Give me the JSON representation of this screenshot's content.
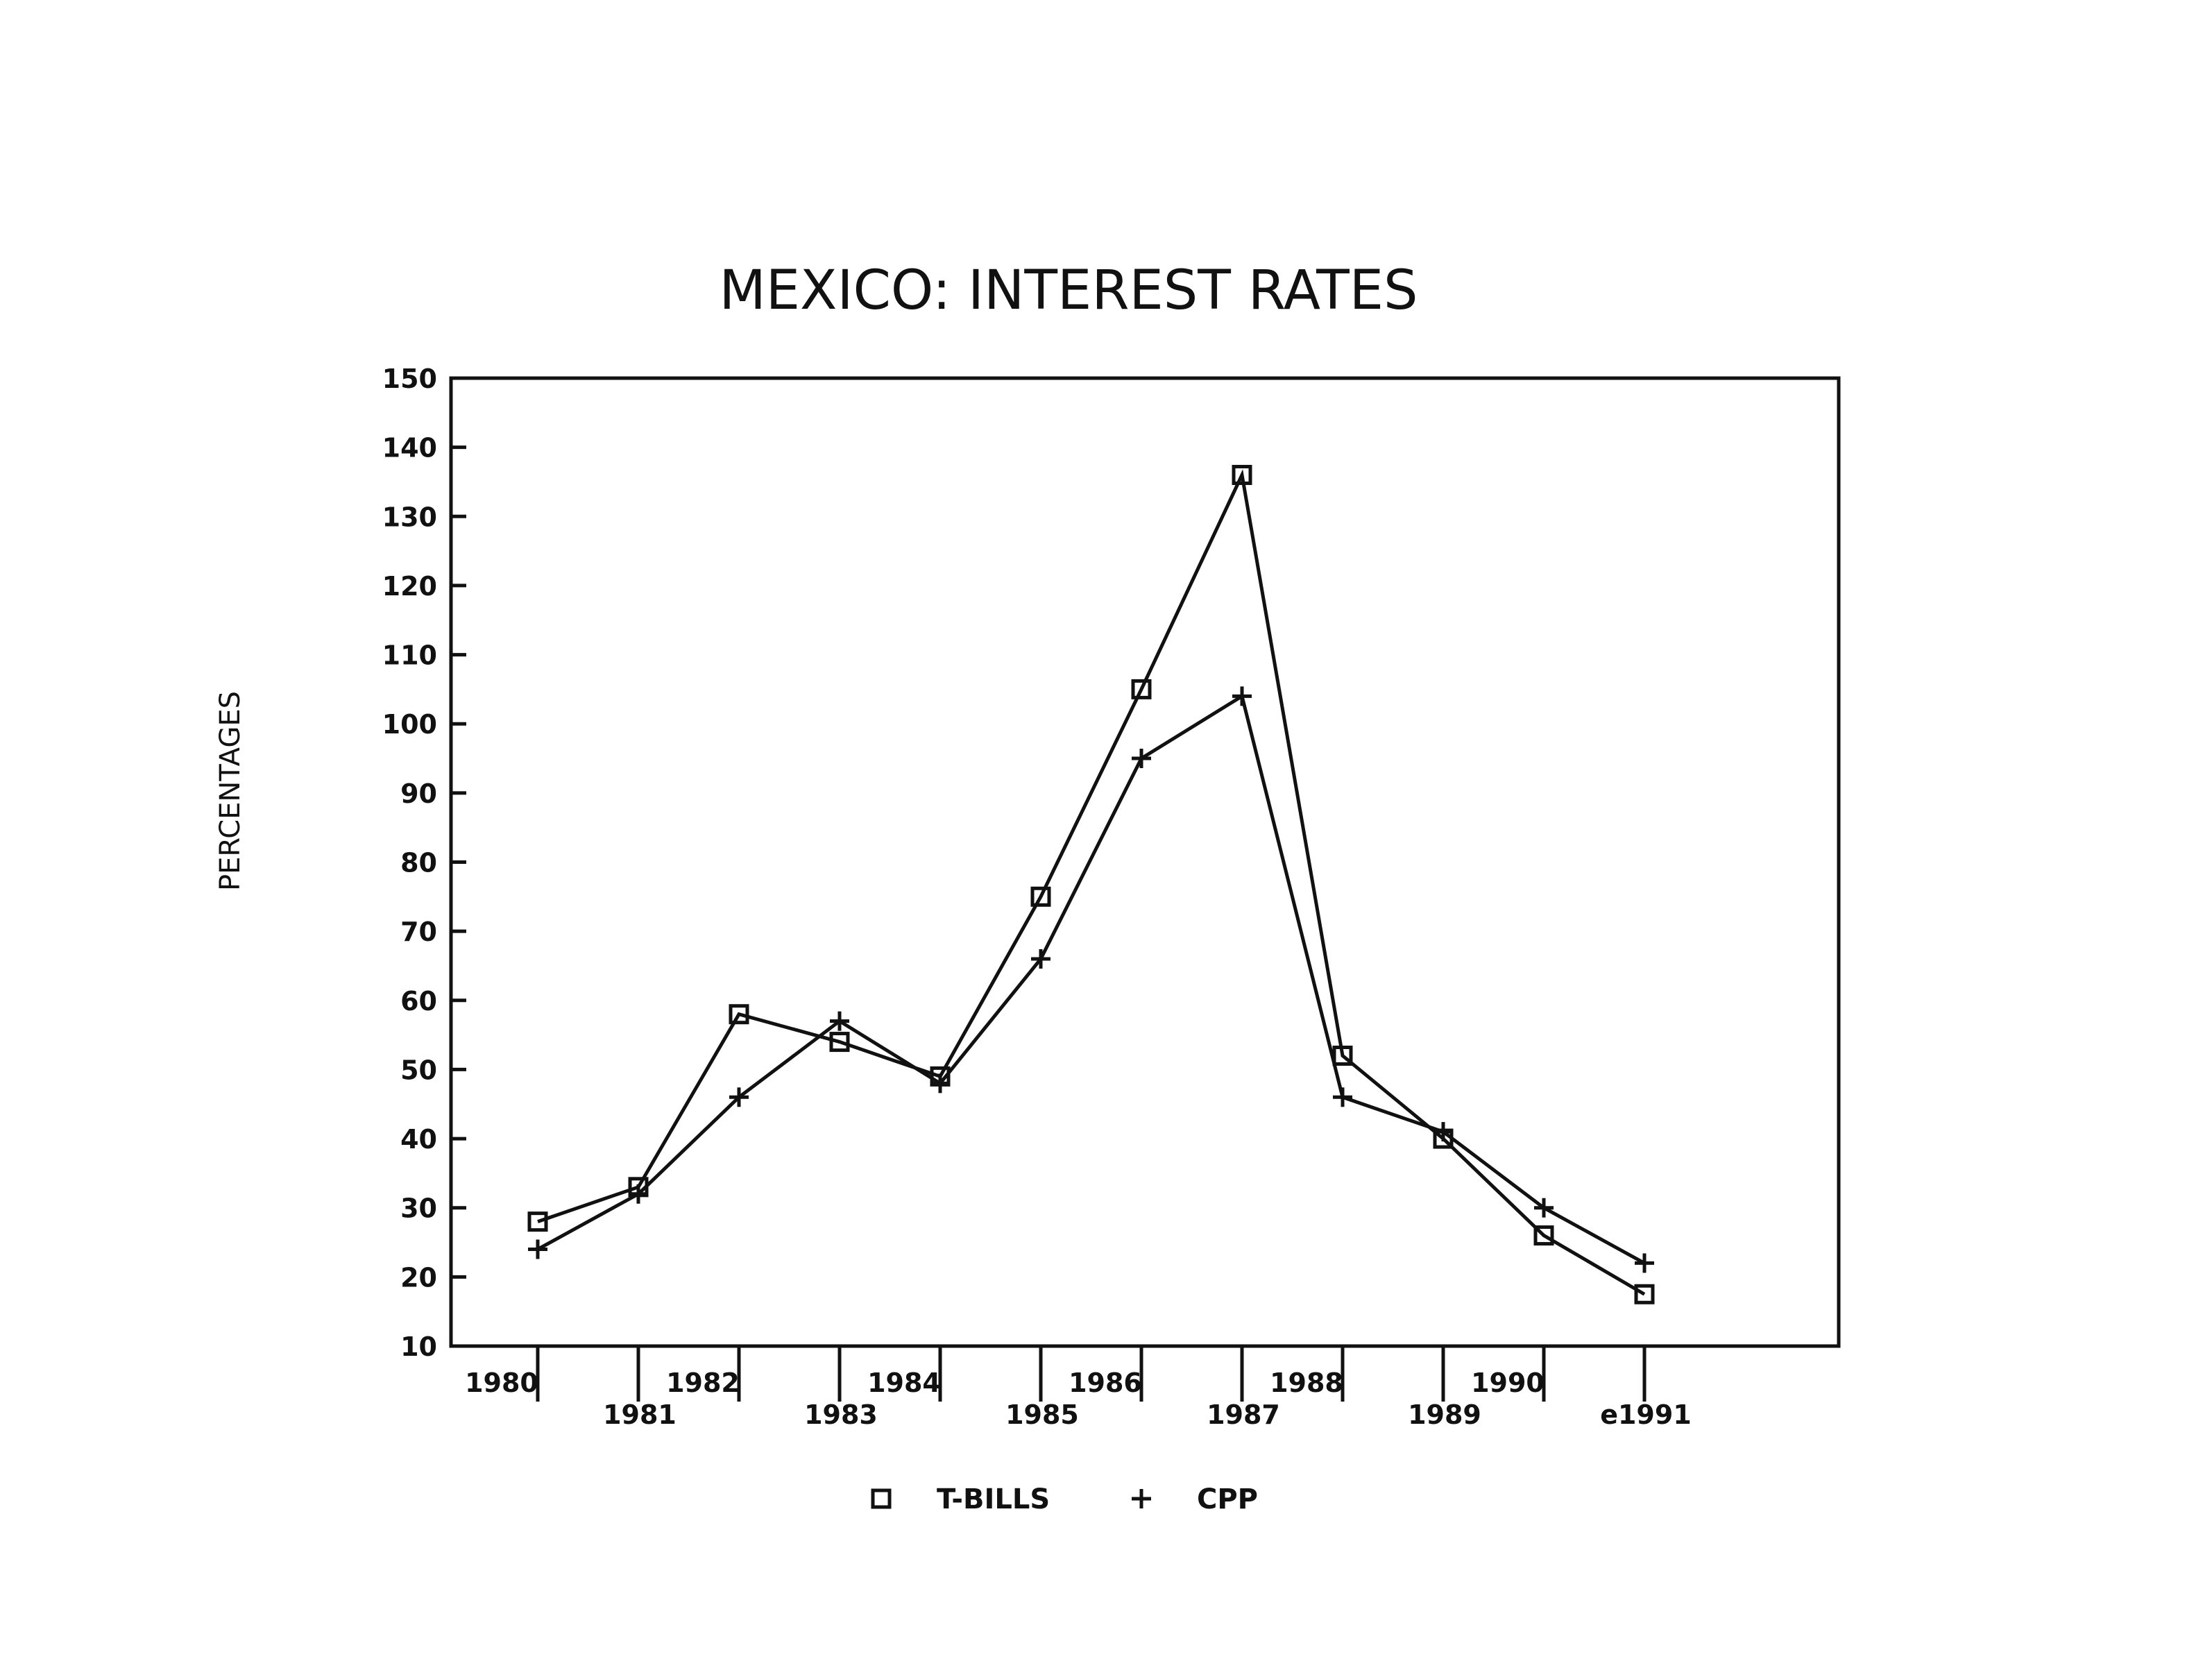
{
  "chart_data": {
    "type": "line",
    "title": "MEXICO: INTEREST RATES",
    "xlabel": "",
    "ylabel": "PERCENTAGES",
    "categories": [
      "1980",
      "1981",
      "1982",
      "1983",
      "1984",
      "1985",
      "1986",
      "1987",
      "1988",
      "1989",
      "1990",
      "e1991"
    ],
    "ylim": [
      10,
      150
    ],
    "yticks": [
      10,
      20,
      30,
      40,
      50,
      60,
      70,
      80,
      90,
      100,
      110,
      120,
      130,
      140,
      150
    ],
    "grid": false,
    "legend_position": "bottom",
    "series": [
      {
        "name": "T-BILLS",
        "marker": "square",
        "values": [
          28,
          33,
          58,
          54,
          49,
          75,
          105,
          136,
          52,
          40,
          26,
          17.5
        ]
      },
      {
        "name": "CPP",
        "marker": "plus",
        "values": [
          24,
          32,
          46,
          57,
          48,
          66,
          95,
          104,
          46,
          41,
          30,
          22
        ]
      }
    ]
  }
}
